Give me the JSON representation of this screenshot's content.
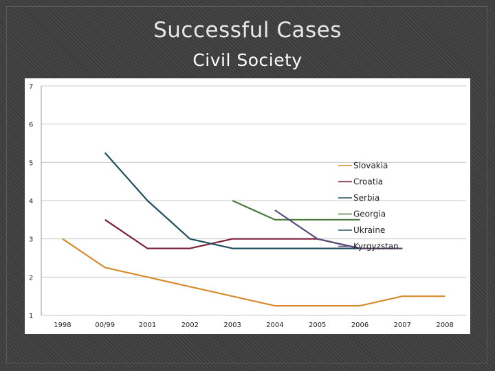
{
  "slide": {
    "title": "Successful Cases",
    "subtitle": "Civil Society"
  },
  "chart_data": {
    "type": "line",
    "categories": [
      "1998",
      "00/99",
      "2001",
      "2002",
      "2003",
      "2004",
      "2005",
      "2006",
      "2007",
      "2008"
    ],
    "ylim": [
      1,
      7
    ],
    "yticks": [
      1,
      2,
      3,
      4,
      5,
      6,
      7
    ],
    "grid": true,
    "legend": "right",
    "series": [
      {
        "name": "Slovakia",
        "color": "#d98a2b",
        "values": [
          3.0,
          2.25,
          2.0,
          1.75,
          1.5,
          1.25,
          1.25,
          1.25,
          1.5,
          1.5
        ]
      },
      {
        "name": "Croatia",
        "color": "#7a2038",
        "values": [
          null,
          3.5,
          2.75,
          2.75,
          3.0,
          3.0,
          3.0,
          2.75,
          2.75,
          null
        ]
      },
      {
        "name": "Serbia",
        "color": "#1f4e5f",
        "values": [
          null,
          5.25,
          4.0,
          3.0,
          2.75,
          2.75,
          2.75,
          2.75,
          null,
          null
        ]
      },
      {
        "name": "Georgia",
        "color": "#4a7a3a",
        "values": [
          null,
          null,
          null,
          null,
          4.0,
          3.5,
          3.5,
          3.5,
          null,
          null
        ]
      },
      {
        "name": "Ukraine",
        "color": "#2a5a6a",
        "values": [
          null,
          null,
          null,
          null,
          null,
          null,
          null,
          null,
          null,
          null
        ]
      },
      {
        "name": "Kyrgyzstan",
        "color": "#5a4a7a",
        "values": [
          null,
          null,
          null,
          null,
          null,
          3.75,
          3.0,
          2.75,
          2.75,
          null
        ]
      }
    ]
  }
}
